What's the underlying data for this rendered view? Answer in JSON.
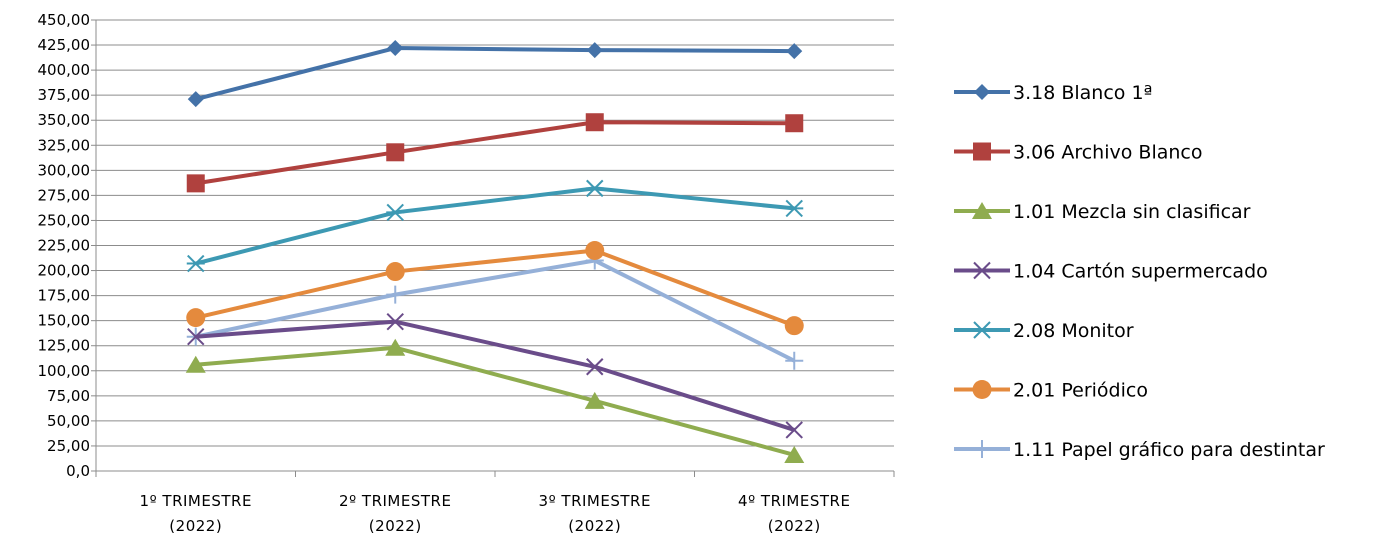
{
  "chart_data": {
    "type": "line",
    "title": "",
    "xlabel": "",
    "ylabel": "",
    "categories": [
      [
        "1º TRIMESTRE",
        "(2022)"
      ],
      [
        "2º TRIMESTRE",
        "(2022)"
      ],
      [
        "3º TRIMESTRE",
        "(2022)"
      ],
      [
        "4º TRIMESTRE",
        "(2022)"
      ]
    ],
    "ylim": [
      0,
      450
    ],
    "ytick_step": 25,
    "ytick_labels": [
      "0,0",
      "25,00",
      "50,00",
      "75,00",
      "100,00",
      "125,00",
      "150,00",
      "175,00",
      "200,00",
      "225,00",
      "250,00",
      "275,00",
      "300,00",
      "325,00",
      "350,00",
      "375,00",
      "400,00",
      "425,00",
      "450,00"
    ],
    "grid": true,
    "legend_position": "right",
    "series": [
      {
        "name": "3.18 Blanco 1ª",
        "values": [
          371,
          422,
          420,
          419
        ],
        "color": "#4472a8",
        "marker": "diamond"
      },
      {
        "name": "3.06 Archivo Blanco",
        "values": [
          287,
          318,
          348,
          347
        ],
        "color": "#b0413e",
        "marker": "square"
      },
      {
        "name": "1.01 Mezcla sin clasificar",
        "values": [
          106,
          123,
          70,
          16
        ],
        "color": "#8fac4f",
        "marker": "triangle"
      },
      {
        "name": "1.04 Cartón supermercado",
        "values": [
          134,
          149,
          104,
          41
        ],
        "color": "#6a4c8a",
        "marker": "x"
      },
      {
        "name": "2.08 Monitor",
        "values": [
          207,
          258,
          282,
          262
        ],
        "color": "#3d99b3",
        "marker": "star"
      },
      {
        "name": "2.01 Periódico",
        "values": [
          153,
          199,
          220,
          145
        ],
        "color": "#e48a3d",
        "marker": "circle"
      },
      {
        "name": "1.11 Papel gráfico para destintar",
        "values": [
          134,
          176,
          210,
          110
        ],
        "color": "#95b0d8",
        "marker": "plus"
      }
    ]
  }
}
